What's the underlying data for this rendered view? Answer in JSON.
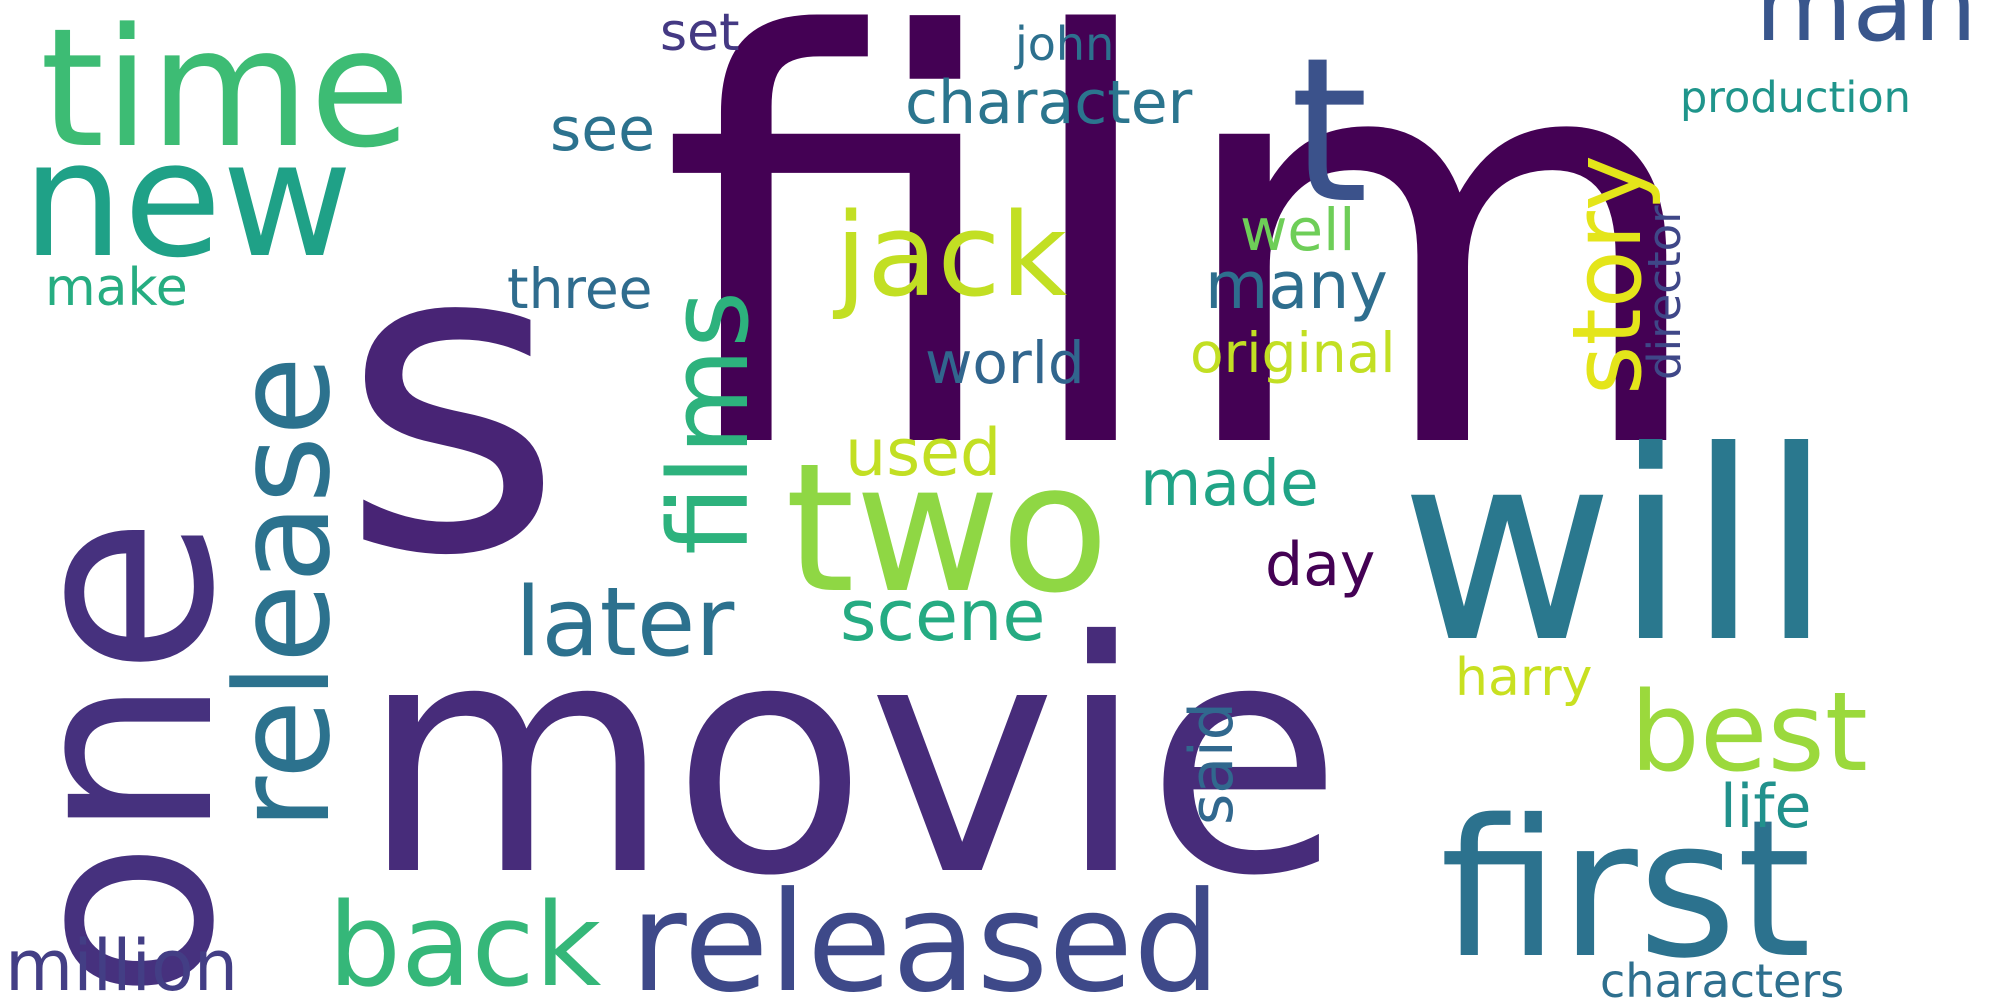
{
  "words": [
    {
      "text": "film",
      "color": "#440154",
      "rot": 0
    },
    {
      "text": "s",
      "color": "#482475",
      "rot": 0
    },
    {
      "text": "movie",
      "color": "#472c7a",
      "rot": 0
    },
    {
      "text": "one",
      "color": "#46317e",
      "rot": -90
    },
    {
      "text": "will",
      "color": "#2a788e",
      "rot": 0
    },
    {
      "text": "first",
      "color": "#2c728e",
      "rot": 0
    },
    {
      "text": "two",
      "color": "#8fd744",
      "rot": 0
    },
    {
      "text": "time",
      "color": "#3dbc74",
      "rot": 0
    },
    {
      "text": "new",
      "color": "#1fa187",
      "rot": 0
    },
    {
      "text": "released",
      "color": "#3e4989",
      "rot": 0
    },
    {
      "text": "back",
      "color": "#35b779",
      "rot": 0
    },
    {
      "text": "release",
      "color": "#2c728e",
      "rot": -90
    },
    {
      "text": "films",
      "color": "#2db27d",
      "rot": -90
    },
    {
      "text": "jack",
      "color": "#c2df23",
      "rot": 0
    },
    {
      "text": "t",
      "color": "#3b528b",
      "rot": 0
    },
    {
      "text": "man",
      "color": "#39568c",
      "rot": 0
    },
    {
      "text": "story",
      "color": "#e4e51a",
      "rot": -90
    },
    {
      "text": "best",
      "color": "#9bd93c",
      "rot": 0
    },
    {
      "text": "later",
      "color": "#2c718e",
      "rot": 0
    },
    {
      "text": "scene",
      "color": "#25ab82",
      "rot": 0
    },
    {
      "text": "million",
      "color": "#433e85",
      "rot": 0
    },
    {
      "text": "characters",
      "color": "#2e6f8e",
      "rot": 0
    },
    {
      "text": "life",
      "color": "#21918c",
      "rot": 0
    },
    {
      "text": "harry",
      "color": "#c8e020",
      "rot": 0
    },
    {
      "text": "said",
      "color": "#31688e",
      "rot": -90
    },
    {
      "text": "day",
      "color": "#440154",
      "rot": 0
    },
    {
      "text": "made",
      "color": "#20a486",
      "rot": 0
    },
    {
      "text": "used",
      "color": "#c2df23",
      "rot": 0
    },
    {
      "text": "world",
      "color": "#31668e",
      "rot": 0
    },
    {
      "text": "original",
      "color": "#c2df23",
      "rot": 0
    },
    {
      "text": "many",
      "color": "#2e6e8e",
      "rot": 0
    },
    {
      "text": "well",
      "color": "#6ece58",
      "rot": 0
    },
    {
      "text": "three",
      "color": "#2f6c8e",
      "rot": 0
    },
    {
      "text": "make",
      "color": "#26ad81",
      "rot": 0
    },
    {
      "text": "see",
      "color": "#2c728e",
      "rot": 0
    },
    {
      "text": "character",
      "color": "#2b758e",
      "rot": 0
    },
    {
      "text": "set",
      "color": "#443983",
      "rot": 0
    },
    {
      "text": "john",
      "color": "#2d708e",
      "rot": 0
    },
    {
      "text": "production",
      "color": "#1f958b",
      "rot": 0
    },
    {
      "text": "director",
      "color": "#3f4788",
      "rot": -90
    }
  ]
}
